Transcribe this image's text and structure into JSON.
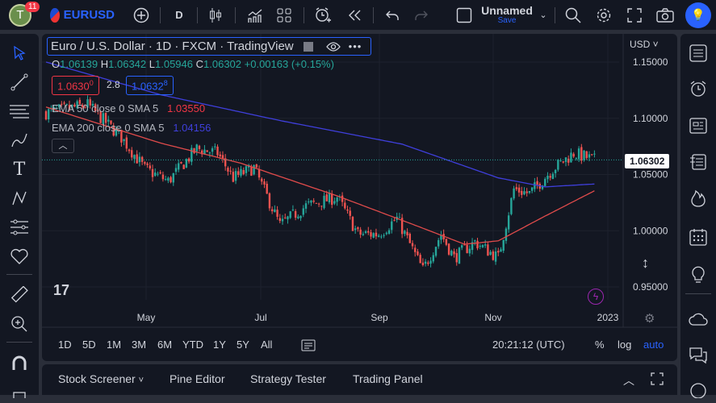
{
  "topbar": {
    "avatar_letter": "T",
    "notifications": "11",
    "symbol": "EURUSD",
    "interval": "D",
    "layout_name": "Unnamed",
    "save_label": "Save"
  },
  "legend": {
    "title": "Euro / U.S. Dollar · 1D · FXCM · TradingView",
    "o_label": "O",
    "o": "1.06139",
    "h_label": "H",
    "h": "1.06342",
    "l_label": "L",
    "l": "1.05946",
    "c_label": "C",
    "c": "1.06302",
    "change": "+0.00163 (+0.15%)",
    "sell": "1.0630",
    "sell_sup": "0",
    "spread": "2.8",
    "buy": "1.0632",
    "buy_sup": "8",
    "ema50_label": "EMA 50 close 0 SMA 5",
    "ema50_value": "1.03550",
    "ema200_label": "EMA 200 close 0 SMA 5",
    "ema200_value": "1.04156"
  },
  "price_axis": {
    "currency": "USD",
    "ticks": [
      "1.15000",
      "1.10000",
      "1.05000",
      "1.00000",
      "0.95000"
    ],
    "last_price": "1.06302"
  },
  "time_axis": {
    "ticks": [
      "May",
      "Jul",
      "Sep",
      "Nov",
      "2023"
    ]
  },
  "ranges": [
    "1D",
    "5D",
    "1M",
    "3M",
    "6M",
    "YTD",
    "1Y",
    "5Y",
    "All"
  ],
  "clock": "20:21:12 (UTC)",
  "scale_opts": {
    "percent": "%",
    "log": "log",
    "auto": "auto"
  },
  "panels": [
    "Stock Screener",
    "Pine Editor",
    "Strategy Tester",
    "Trading Panel"
  ],
  "colors": {
    "up": "#26a69a",
    "down": "#ef5350",
    "ema50": "#e04b4b",
    "ema200": "#3f3fdc",
    "accent": "#2962ff"
  },
  "chart_data": {
    "type": "candlestick",
    "ylim": [
      0.94,
      1.16
    ],
    "bars": 212,
    "close_path": [
      [
        0,
        1.105
      ],
      [
        16,
        1.112
      ],
      [
        29,
        1.083
      ],
      [
        38,
        1.055
      ],
      [
        47,
        1.044
      ],
      [
        58,
        1.073
      ],
      [
        66,
        1.069
      ],
      [
        72,
        1.047
      ],
      [
        80,
        1.056
      ],
      [
        90,
        1.005
      ],
      [
        100,
        1.022
      ],
      [
        112,
        1.03
      ],
      [
        120,
        0.997
      ],
      [
        128,
        0.997
      ],
      [
        135,
        1.011
      ],
      [
        145,
        0.965
      ],
      [
        152,
        0.997
      ],
      [
        157,
        0.976
      ],
      [
        165,
        0.99
      ],
      [
        174,
        0.976
      ],
      [
        180,
        1.037
      ],
      [
        186,
        1.033
      ],
      [
        195,
        1.055
      ],
      [
        203,
        1.069
      ],
      [
        211,
        1.063
      ]
    ],
    "ema50": [
      [
        0,
        1.11
      ],
      [
        44,
        1.078
      ],
      [
        75,
        1.06
      ],
      [
        112,
        1.031
      ],
      [
        143,
        1.004
      ],
      [
        161,
        0.988
      ],
      [
        174,
        0.991
      ],
      [
        192,
        1.013
      ],
      [
        211,
        1.0355
      ]
    ],
    "ema200": [
      [
        0,
        1.15
      ],
      [
        44,
        1.121
      ],
      [
        90,
        1.098
      ],
      [
        137,
        1.077
      ],
      [
        174,
        1.047
      ],
      [
        192,
        1.039
      ],
      [
        211,
        1.04156
      ]
    ]
  }
}
